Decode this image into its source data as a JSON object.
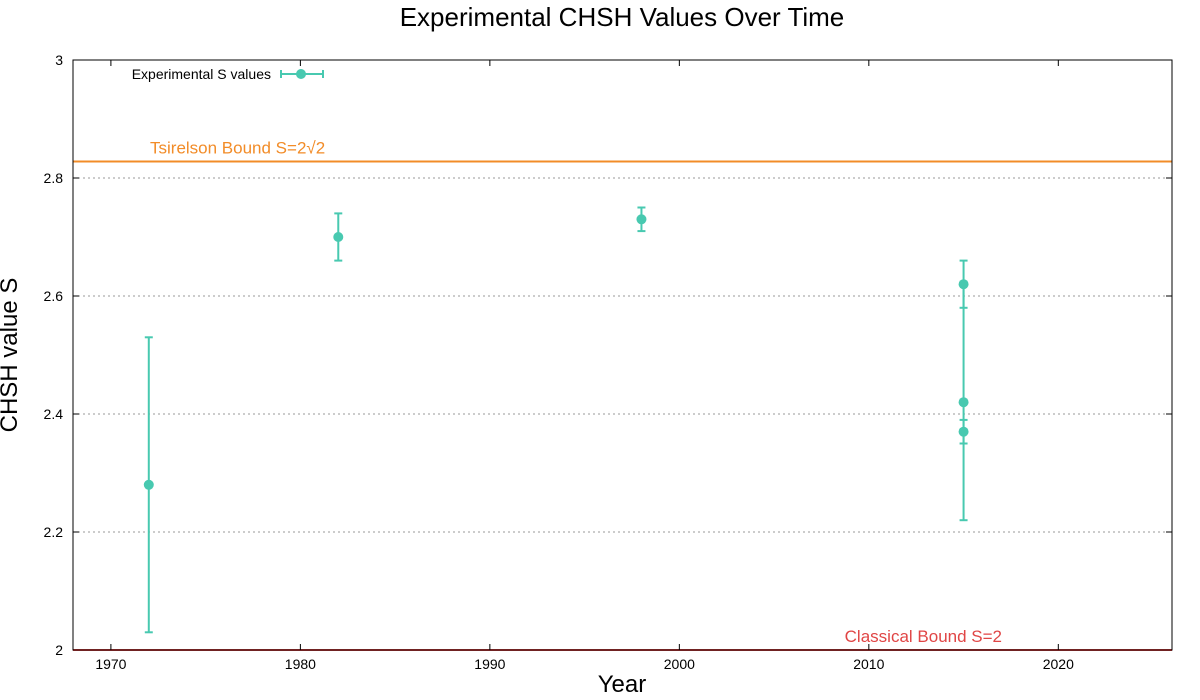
{
  "chart_data": {
    "type": "scatter",
    "title": "Experimental CHSH Values Over Time",
    "xlabel": "Year",
    "ylabel": "CHSH value S",
    "xlim": [
      1968,
      2026
    ],
    "ylim": [
      2,
      3
    ],
    "x_ticks": [
      1970,
      1980,
      1990,
      2000,
      2010,
      2020
    ],
    "y_ticks": [
      2,
      2.2,
      2.4,
      2.6,
      2.8,
      3
    ],
    "y_tick_labels": [
      "2",
      "2.2",
      "2.4",
      "2.6",
      "2.8",
      "3"
    ],
    "grid": "horizontal dotted",
    "legend_position": "top-left",
    "series": [
      {
        "name": "Experimental S values",
        "color": "#48c9b0",
        "points": [
          {
            "x": 1972,
            "y": 2.28,
            "yerr_low": 2.03,
            "yerr_high": 2.53
          },
          {
            "x": 1982,
            "y": 2.7,
            "yerr_low": 2.66,
            "yerr_high": 2.74
          },
          {
            "x": 1998,
            "y": 2.73,
            "yerr_low": 2.71,
            "yerr_high": 2.75
          },
          {
            "x": 2015,
            "y": 2.42,
            "yerr_low": 2.22,
            "yerr_high": 2.62
          },
          {
            "x": 2015,
            "y": 2.37,
            "yerr_low": 2.35,
            "yerr_high": 2.39
          },
          {
            "x": 2015,
            "y": 2.62,
            "yerr_low": 2.58,
            "yerr_high": 2.66
          }
        ]
      }
    ],
    "reference_lines": [
      {
        "label": "Tsirelson Bound S=2√2",
        "y": 2.828,
        "color": "#f28c28"
      },
      {
        "label": "Classical Bound S=2",
        "y": 2.0,
        "color": "#e04545"
      }
    ]
  }
}
